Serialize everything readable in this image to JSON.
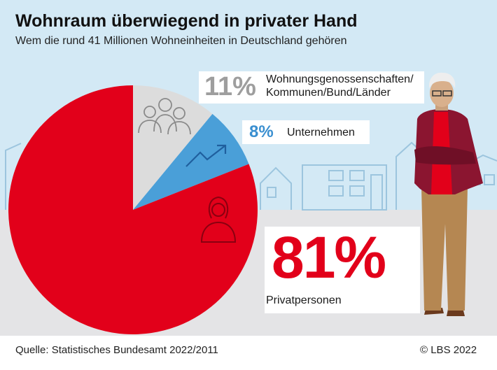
{
  "title": "Wohnraum überwiegend in privater Hand",
  "subtitle": "Wem die rund 41 Millionen Wohneinheiten in Deutschland gehören",
  "colors": {
    "private": "#e2001a",
    "companies": "#4a9fd8",
    "cooperatives": "#dcdcdc",
    "cooperatives_pct_text": "#9e9e9e",
    "companies_pct_text": "#3a8fd0"
  },
  "chart_data": {
    "type": "pie",
    "slices": [
      {
        "label": "Privatpersonen",
        "value": 81,
        "display": "81%",
        "color": "#e2001a",
        "icon": "woman-icon"
      },
      {
        "label": "Unternehmen",
        "value": 8,
        "display": "8%",
        "color": "#4a9fd8",
        "icon": "trend-arrow-icon"
      },
      {
        "label_lines": [
          "Wohnungsgenossenschaften/",
          "Kommunen/Bund/Länder"
        ],
        "value": 11,
        "display": "11%",
        "color": "#dcdcdc",
        "icon": "group-of-people-icon"
      }
    ]
  },
  "source": "Quelle: Statistisches Bundesamt 2022/2011",
  "copyright": "© LBS 2022"
}
